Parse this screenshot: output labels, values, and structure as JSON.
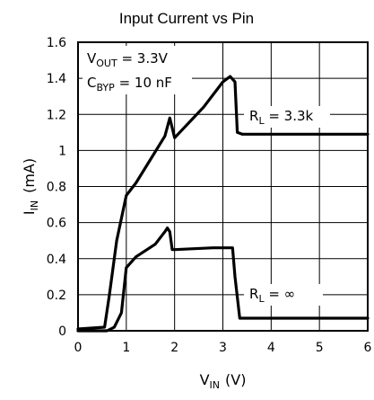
{
  "chart_data": {
    "type": "line",
    "title": "Input Current vs Pin",
    "xlabel": {
      "main": "V",
      "sub": "IN",
      "unit": "(V)"
    },
    "ylabel": {
      "main": "I",
      "sub": "IN",
      "unit": "(mA)"
    },
    "xlim": [
      0,
      6
    ],
    "ylim": [
      0,
      1.6
    ],
    "xticks": [
      "0",
      "1",
      "2",
      "3",
      "4",
      "5",
      "6"
    ],
    "yticks": [
      "0",
      "0.2",
      "0.4",
      "0.6",
      "0.8",
      "1",
      "1.2",
      "1.4",
      "1.6"
    ],
    "grid": true,
    "conditions": [
      {
        "main": "V",
        "sub": "OUT",
        "rest": " = 3.3V"
      },
      {
        "main": "C",
        "sub": "BYP",
        "rest": " = 10 nF"
      }
    ],
    "series": [
      {
        "name": "R_L = 3.3k",
        "label": {
          "main": "R",
          "sub": "L",
          "rest": " = 3.3k"
        },
        "x": [
          0,
          0.55,
          0.65,
          0.8,
          1.0,
          1.2,
          1.5,
          1.8,
          1.9,
          2.0,
          2.6,
          3.0,
          3.15,
          3.25,
          3.3,
          3.4,
          6
        ],
        "y": [
          0.01,
          0.02,
          0.2,
          0.5,
          0.75,
          0.82,
          0.95,
          1.08,
          1.18,
          1.07,
          1.24,
          1.38,
          1.41,
          1.38,
          1.1,
          1.09,
          1.09
        ]
      },
      {
        "name": "R_L = ∞",
        "label": {
          "main": "R",
          "sub": "L",
          "rest": " = ∞"
        },
        "x": [
          0,
          0.6,
          0.75,
          0.9,
          1.0,
          1.2,
          1.6,
          1.8,
          1.85,
          1.9,
          1.95,
          2.0,
          2.8,
          3.2,
          3.25,
          3.35,
          6
        ],
        "y": [
          0,
          0.0,
          0.02,
          0.1,
          0.35,
          0.41,
          0.48,
          0.55,
          0.57,
          0.55,
          0.45,
          0.45,
          0.46,
          0.46,
          0.3,
          0.07,
          0.07
        ]
      }
    ]
  }
}
